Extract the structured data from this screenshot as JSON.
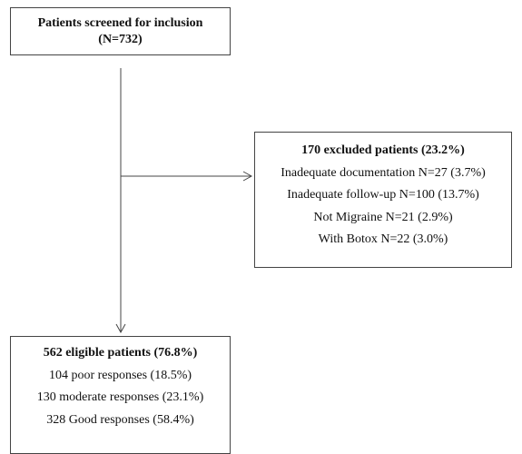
{
  "screened": {
    "line1": "Patients screened for inclusion",
    "line2": "(N=732)"
  },
  "excluded": {
    "title": "170 excluded patients (23.2%)",
    "items": [
      "Inadequate documentation N=27 (3.7%)",
      "Inadequate follow-up N=100 (13.7%)",
      "Not Migraine N=21 (2.9%)",
      "With Botox N=22 (3.0%)"
    ]
  },
  "eligible": {
    "title": "562 eligible patients (76.8%)",
    "items": [
      "104 poor responses (18.5%)",
      "130 moderate responses (23.1%)",
      "328 Good responses (58.4%)"
    ]
  }
}
